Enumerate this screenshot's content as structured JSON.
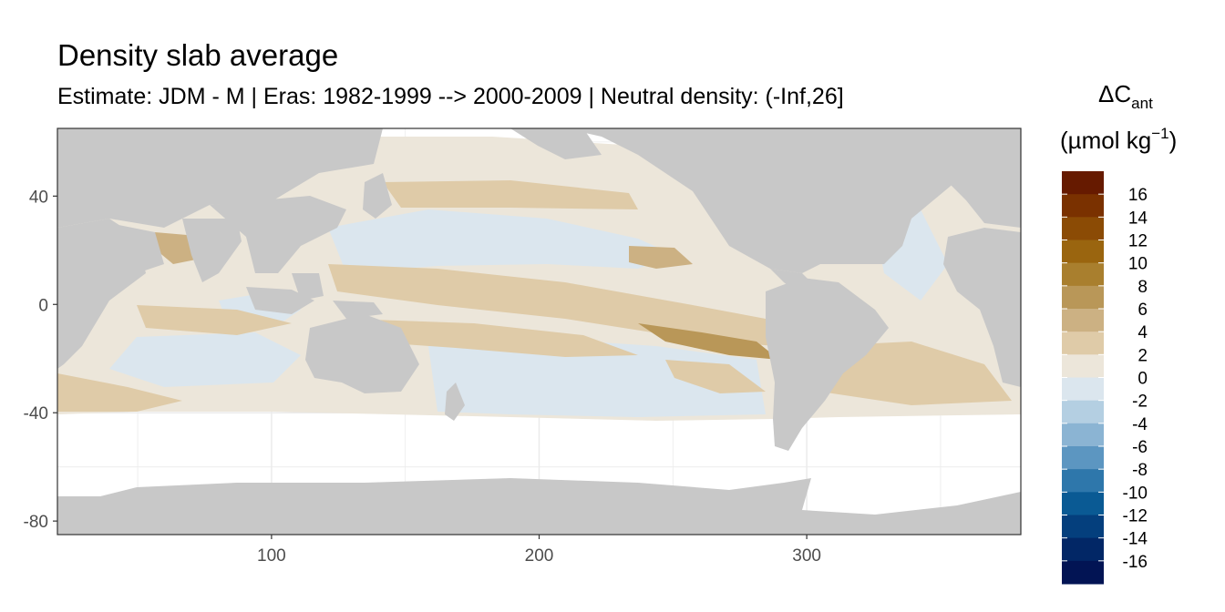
{
  "chart_data": {
    "type": "heatmap",
    "title": "Density slab average",
    "subtitle": "Estimate: JDM - M | Eras: 1982-1999 --> 2000-2009 | Neutral density: (-Inf,26]",
    "xlabel": "",
    "ylabel": "",
    "x_ticks": [
      "100",
      "200",
      "300"
    ],
    "y_ticks": [
      "40",
      "0",
      "-40",
      "-80"
    ],
    "x_tick_values": [
      100,
      200,
      300
    ],
    "y_tick_values": [
      40,
      0,
      -40,
      -80
    ],
    "xlim": [
      20,
      380
    ],
    "ylim": [
      -85,
      65
    ],
    "grid": true,
    "legend": {
      "placement": "right",
      "title_main": "ΔC",
      "title_sub": "ant",
      "unit_prefix": "(µmol kg",
      "unit_exp": "−1",
      "unit_suffix": ")",
      "labels": [
        "16",
        "14",
        "12",
        "10",
        "8",
        "6",
        "4",
        "2",
        "0",
        "-2",
        "-4",
        "-6",
        "-8",
        "-10",
        "-12",
        "-14",
        "-16"
      ],
      "colors": [
        "#661a00",
        "#7a3100",
        "#8b4b05",
        "#9a650f",
        "#a97f2e",
        "#b99758",
        "#ccb183",
        "#dfcba8",
        "#ece6da",
        "#dbe6ee",
        "#b4cfe2",
        "#8bb4d3",
        "#5c96c1",
        "#2e77ab",
        "#0a5a94",
        "#043f7d",
        "#022766",
        "#021454"
      ]
    },
    "colors": {
      "land": "#c8c8c8",
      "no_data": "#ffffff",
      "panel_border": "#333333",
      "grid": "#ebebeb"
    }
  }
}
